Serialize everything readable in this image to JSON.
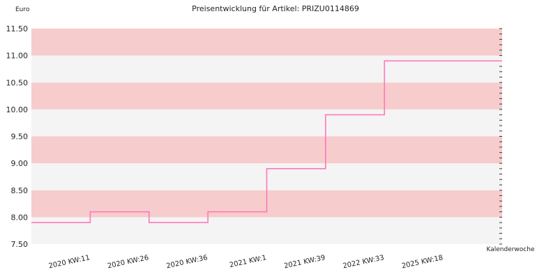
{
  "chart_data": {
    "type": "line",
    "step": true,
    "title": "Preisentwicklung für Artikel: PRIZU0114869",
    "ylabel": "Euro",
    "xlabel": "Kalenderwoche",
    "ylim": [
      7.5,
      11.5
    ],
    "yticks": [
      "7.50",
      "8.00",
      "8.50",
      "9.00",
      "9.50",
      "10.00",
      "10.50",
      "11.00",
      "11.50"
    ],
    "ytick_values": [
      7.5,
      8.0,
      8.5,
      9.0,
      9.5,
      10.0,
      10.5,
      11.0,
      11.5
    ],
    "categories": [
      "2020 KW:11",
      "2020 KW:26",
      "2020 KW:36",
      "2021 KW:1",
      "2021 KW:39",
      "2022 KW:33",
      "2025 KW:18"
    ],
    "values": [
      7.9,
      8.1,
      7.9,
      8.1,
      8.9,
      9.9,
      10.9
    ],
    "grid": false,
    "band_colors": [
      "#f7cccc",
      "#f4f4f4"
    ],
    "line_color": "#ff77bb"
  }
}
